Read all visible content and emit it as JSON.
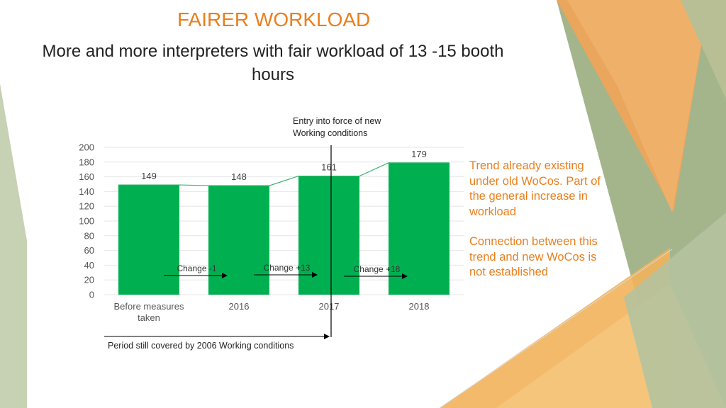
{
  "slide": {
    "title": "FAIRER WORKLOAD",
    "subtitle": "More and more interpreters with fair workload of 13 -15 booth hours",
    "entry_label": "Entry into force of new Working conditions",
    "period_label": "Period still covered by 2006 Working conditions",
    "note_1": "Trend already existing under old WoCos. Part of the general increase in workload",
    "note_2": "Connection between this trend and new WoCos is not established"
  },
  "colors": {
    "accent": "#e97f1e",
    "bar": "#00b050",
    "trend_line": "#33b36b"
  },
  "chart_data": {
    "type": "bar",
    "categories": [
      "Before measures taken",
      "2016",
      "2017",
      "2018"
    ],
    "category_lines": [
      [
        "Before measures",
        "taken"
      ],
      [
        "2016"
      ],
      [
        "2017"
      ],
      [
        "2018"
      ]
    ],
    "values": [
      149,
      148,
      161,
      179
    ],
    "ylim": [
      0,
      200
    ],
    "yticks": [
      0,
      20,
      40,
      60,
      80,
      100,
      120,
      140,
      160,
      180,
      200
    ],
    "grid": true,
    "changes": [
      {
        "label": "Change -1",
        "from": 0,
        "to": 1
      },
      {
        "label": "Change +13",
        "from": 1,
        "to": 2
      },
      {
        "label": "Change +18",
        "from": 2,
        "to": 3
      }
    ]
  }
}
